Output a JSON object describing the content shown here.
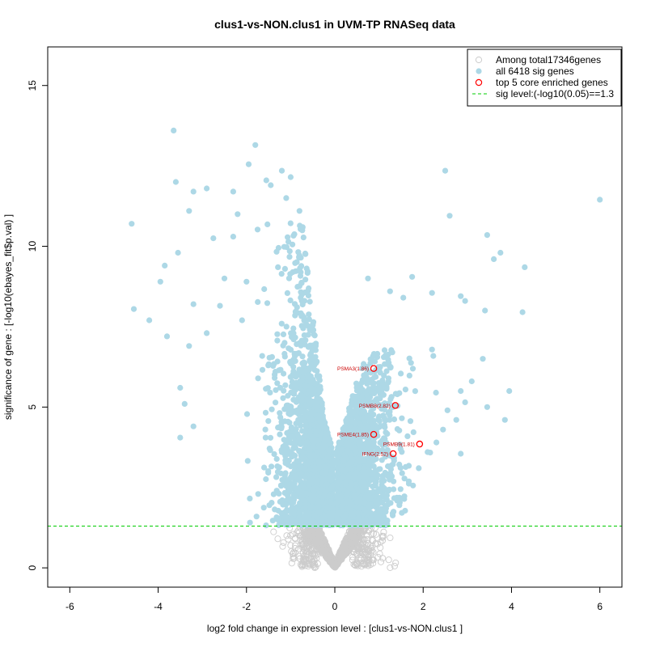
{
  "chart_data": {
    "type": "scatter",
    "title": "clus1-vs-NON.clus1 in UVM-TP RNASeq data",
    "xlabel": "log2 fold change in expression level : [clus1-vs-NON.clus1 ]",
    "ylabel": "significance of gene : [-log10(ebayes_fit$p.val) ]",
    "xlim": [
      -6.5,
      6.5
    ],
    "ylim": [
      -0.6,
      16.2
    ],
    "x_ticks": [
      -6,
      -4,
      -2,
      0,
      2,
      4,
      6
    ],
    "y_ticks": [
      0,
      5,
      10,
      15
    ],
    "sig_level": 1.3,
    "legend": {
      "position": "top-right",
      "entries": [
        {
          "label": "Among total17346genes",
          "marker": "open-circle",
          "color": "#cccccc"
        },
        {
          "label": "all 6418 sig genes",
          "marker": "filled-circle",
          "color": "#add8e6"
        },
        {
          "label": "top 5 core enriched genes",
          "marker": "open-circle",
          "color": "#ff0000"
        },
        {
          "label": "sig level:(-log10(0.05)==1.3",
          "marker": "dashed-line",
          "color": "#00cc00"
        }
      ]
    },
    "colors": {
      "nonsig": "#cccccc",
      "sig": "#add8e6",
      "top": "#ff0000",
      "sigline": "#00cc00",
      "label": "#cc0000"
    },
    "top_genes": [
      {
        "label": "PSMA3(1.86)",
        "x": 0.88,
        "y": 6.2
      },
      {
        "label": "PSMB8(2.82)",
        "x": 1.37,
        "y": 5.05
      },
      {
        "label": "PSME4(1.85)",
        "x": 0.88,
        "y": 4.15
      },
      {
        "label": "PSMB9(1.81)",
        "x": 1.92,
        "y": 3.85
      },
      {
        "label": "IFNG(2.52)",
        "x": 1.32,
        "y": 3.55
      }
    ],
    "sig_points_notable": [
      [
        -3.65,
        13.6
      ],
      [
        -1.8,
        13.15
      ],
      [
        -1.95,
        12.55
      ],
      [
        -1.2,
        12.35
      ],
      [
        -3.6,
        12.0
      ],
      [
        -1.0,
        12.15
      ],
      [
        -3.2,
        11.7
      ],
      [
        -2.9,
        11.8
      ],
      [
        -2.3,
        11.7
      ],
      [
        -1.55,
        12.05
      ],
      [
        -1.45,
        11.9
      ],
      [
        -1.1,
        11.5
      ],
      [
        -0.8,
        11.1
      ],
      [
        -3.3,
        11.1
      ],
      [
        -2.2,
        11.0
      ],
      [
        -4.6,
        10.7
      ],
      [
        -4.55,
        8.05
      ],
      [
        -4.2,
        7.7
      ],
      [
        -3.95,
        8.9
      ],
      [
        -3.85,
        9.4
      ],
      [
        -3.8,
        7.2
      ],
      [
        -3.55,
        9.8
      ],
      [
        -3.2,
        8.2
      ],
      [
        -3.3,
        6.9
      ],
      [
        -3.5,
        5.6
      ],
      [
        -3.4,
        5.1
      ],
      [
        -3.5,
        4.05
      ],
      [
        -3.2,
        4.4
      ],
      [
        -2.9,
        7.3
      ],
      [
        -2.75,
        10.25
      ],
      [
        -2.5,
        9.0
      ],
      [
        -2.3,
        10.3
      ],
      [
        -2.0,
        8.9
      ],
      [
        -2.1,
        7.7
      ],
      [
        -2.6,
        8.15
      ],
      [
        2.5,
        12.35
      ],
      [
        2.6,
        10.95
      ],
      [
        3.45,
        10.35
      ],
      [
        3.6,
        9.6
      ],
      [
        3.75,
        9.8
      ],
      [
        4.3,
        9.35
      ],
      [
        4.25,
        7.95
      ],
      [
        3.4,
        8.0
      ],
      [
        3.95,
        5.5
      ],
      [
        3.85,
        4.6
      ],
      [
        6.0,
        11.45
      ],
      [
        0.75,
        9.0
      ],
      [
        1.75,
        9.05
      ],
      [
        1.25,
        8.6
      ],
      [
        1.55,
        8.4
      ],
      [
        2.2,
        8.55
      ],
      [
        2.85,
        8.45
      ],
      [
        2.95,
        8.3
      ],
      [
        3.35,
        6.5
      ],
      [
        3.1,
        5.8
      ],
      [
        2.85,
        5.5
      ],
      [
        2.95,
        5.15
      ],
      [
        3.45,
        5.0
      ],
      [
        2.75,
        4.6
      ],
      [
        2.55,
        4.9
      ],
      [
        2.85,
        3.55
      ],
      [
        2.45,
        4.3
      ],
      [
        2.3,
        3.9
      ],
      [
        1.9,
        3.1
      ],
      [
        2.1,
        3.6
      ]
    ]
  }
}
